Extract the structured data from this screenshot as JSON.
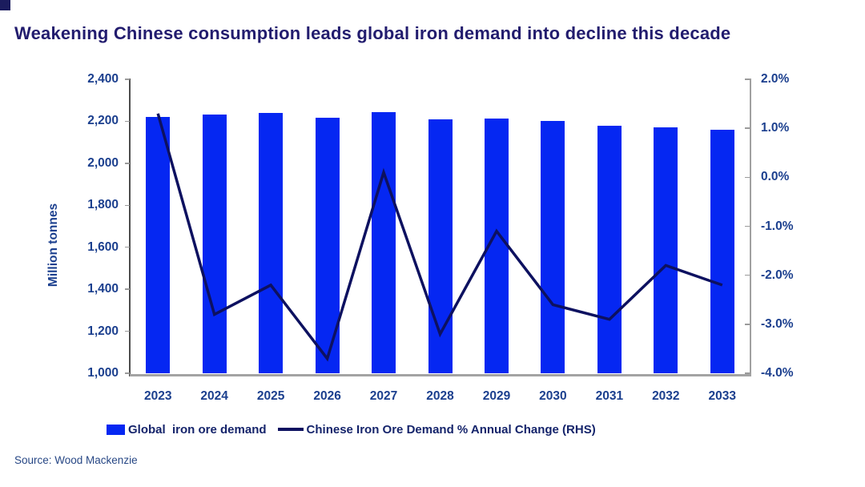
{
  "accent": {
    "bar_color": "#0527f2",
    "line_color": "#0d1160",
    "title_color": "#221c6e",
    "axis_text_color": "#1b3f8e"
  },
  "header": {
    "title": "Weakening Chinese consumption leads global iron demand into decline this decade"
  },
  "legend": [
    {
      "swatch": "bar",
      "label": "Global  iron ore demand"
    },
    {
      "swatch": "line",
      "label": "Chinese Iron Ore Demand % Annual Change (RHS)"
    }
  ],
  "source": {
    "label": "Source: Wood Mackenzie"
  },
  "chart_data": {
    "type": "bar+line combo",
    "title": "Weakening Chinese consumption leads global iron demand into decline this decade",
    "categories": [
      "2023",
      "2024",
      "2025",
      "2026",
      "2027",
      "2028",
      "2029",
      "2030",
      "2031",
      "2032",
      "2033"
    ],
    "series": [
      {
        "name": "Global iron ore demand",
        "type": "bar",
        "axis": "left",
        "unit": "million tonnes",
        "values": [
          2222,
          2232,
          2240,
          2217,
          2243,
          2210,
          2212,
          2202,
          2179,
          2171,
          2161
        ]
      },
      {
        "name": "Chinese Iron Ore Demand % Annual Change (RHS)",
        "type": "line",
        "axis": "right",
        "unit": "%",
        "values": [
          1.3,
          -2.8,
          -2.2,
          -3.7,
          0.1,
          -3.2,
          -1.1,
          -2.6,
          -2.9,
          -1.8,
          -2.2
        ]
      }
    ],
    "left_axis": {
      "label": "Million tonnes",
      "min": 1000,
      "max": 2400,
      "ticks": [
        {
          "label": "2,400",
          "value": 2400
        },
        {
          "label": "2,200",
          "value": 2200
        },
        {
          "label": "2,000",
          "value": 2000
        },
        {
          "label": "1,800",
          "value": 1800
        },
        {
          "label": "1,600",
          "value": 1600
        },
        {
          "label": "1,400",
          "value": 1400
        },
        {
          "label": "1,200",
          "value": 1200
        },
        {
          "label": "1,000",
          "value": 1000
        }
      ]
    },
    "right_axis": {
      "label": "",
      "min": -4.0,
      "max": 2.0,
      "ticks": [
        {
          "label": "2.0%",
          "value": 2.0
        },
        {
          "label": "1.0%",
          "value": 1.0
        },
        {
          "label": "0.0%",
          "value": 0.0
        },
        {
          "label": "-1.0%",
          "value": -1.0
        },
        {
          "label": "-2.0%",
          "value": -2.0
        },
        {
          "label": "-3.0%",
          "value": -3.0
        },
        {
          "label": "-4.0%",
          "value": -4.0
        }
      ]
    },
    "grid": false,
    "legend_position": "bottom"
  }
}
